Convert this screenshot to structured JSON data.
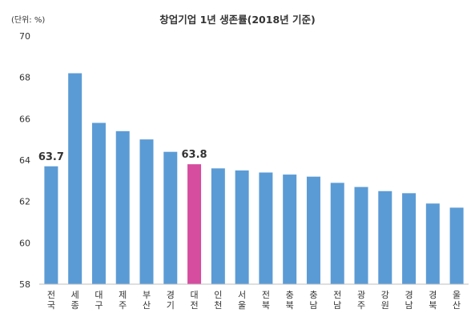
{
  "chart_data": {
    "type": "bar",
    "title": "창업기업 1년 생존률(2018년 기준)",
    "unit_label": "(단위: %)",
    "categories": [
      [
        "전",
        "국"
      ],
      [
        "세",
        "종"
      ],
      [
        "대",
        "구"
      ],
      [
        "제",
        "주"
      ],
      [
        "부",
        "산"
      ],
      [
        "경",
        "기"
      ],
      [
        "대",
        "전"
      ],
      [
        "인",
        "천"
      ],
      [
        "서",
        "울"
      ],
      [
        "전",
        "북"
      ],
      [
        "충",
        "북"
      ],
      [
        "충",
        "남"
      ],
      [
        "전",
        "남"
      ],
      [
        "광",
        "주"
      ],
      [
        "강",
        "원"
      ],
      [
        "경",
        "남"
      ],
      [
        "경",
        "북"
      ],
      [
        "울",
        "산"
      ]
    ],
    "values": [
      63.7,
      68.2,
      65.8,
      65.4,
      65.0,
      64.4,
      63.8,
      63.6,
      63.5,
      63.4,
      63.3,
      63.2,
      62.9,
      62.7,
      62.5,
      62.4,
      61.9,
      61.7
    ],
    "highlight_index": 6,
    "data_labels": [
      {
        "index": 0,
        "text": "63.7"
      },
      {
        "index": 6,
        "text": "63.8"
      }
    ],
    "ylim": [
      58,
      70
    ],
    "yticks": [
      58,
      60,
      62,
      64,
      66,
      68,
      70
    ],
    "grid": false,
    "colors": {
      "bar": "#5B9BD5",
      "highlight": "#D64C9F",
      "axis": "#BFBFBF",
      "text": "#333333"
    }
  }
}
